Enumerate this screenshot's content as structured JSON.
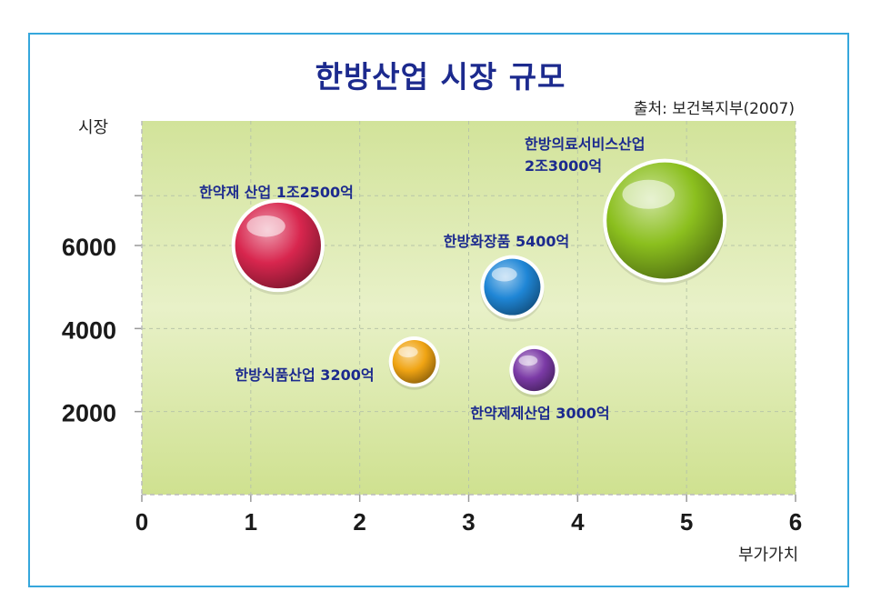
{
  "title": "한방산업 시장 규모",
  "source": "출처: 보건복지부(2007)",
  "chart_data": {
    "type": "bubble",
    "xlabel": "부가가치",
    "ylabel": "시장",
    "xlim": [
      0,
      6
    ],
    "ylim": [
      0,
      9000
    ],
    "x_ticks": [
      0,
      1,
      2,
      3,
      4,
      5,
      6
    ],
    "y_ticks": [
      2000,
      4000,
      6000
    ],
    "grid": true,
    "points": [
      {
        "label": "한약재 산업 1조2500억",
        "x": 1.25,
        "y": 6000,
        "market_eok": 12500,
        "color": "#d8264e"
      },
      {
        "label": "한방화장품 5400억",
        "x": 3.4,
        "y": 5000,
        "market_eok": 5400,
        "color": "#1f86d6"
      },
      {
        "label": "한방식품산업 3200억",
        "x": 2.5,
        "y": 3200,
        "market_eok": 3200,
        "color": "#f0a413"
      },
      {
        "label": "한약제제산업 3000억",
        "x": 3.6,
        "y": 3000,
        "market_eok": 3000,
        "color": "#7b3aa6"
      },
      {
        "label_lines": [
          "한방의료서비스산업",
          "2조3000억"
        ],
        "x": 4.8,
        "y": 6600,
        "market_eok": 23000,
        "color": "#8bbf1e"
      }
    ]
  }
}
